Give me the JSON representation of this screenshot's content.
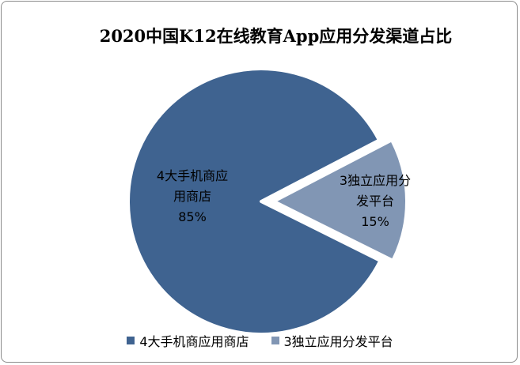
{
  "chart_data": {
    "type": "pie",
    "title": "2020中国K12在线教育App应用分发渠道占比",
    "slices": [
      {
        "name": "4大手机商应用商店",
        "label_lines": [
          "4大手机商应",
          "用商店"
        ],
        "value": 85,
        "value_label": "85%",
        "color": "#3f6390"
      },
      {
        "name": "3独立应用分发平台",
        "label_lines": [
          "3独立应用分",
          "发平台"
        ],
        "value": 15,
        "value_label": "15%",
        "color": "#8196b4"
      }
    ],
    "exploded_slice": "3独立应用分发平台",
    "legend_position": "bottom"
  }
}
